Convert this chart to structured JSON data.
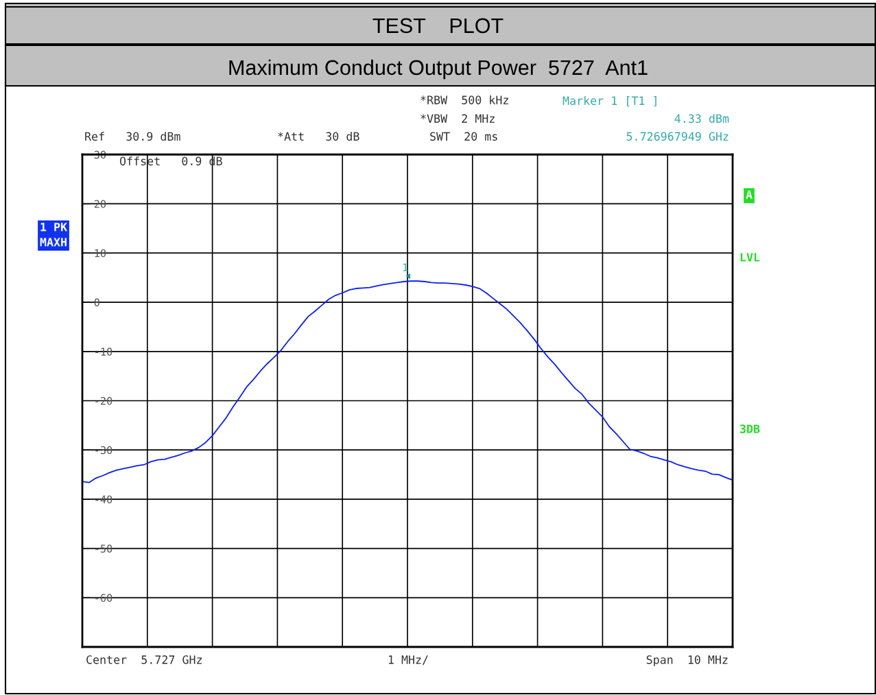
{
  "chart_data": {
    "type": "line",
    "title": "TEST    PLOT",
    "subtitle": "Maximum Conduct Output Power  5727  Ant1",
    "categories": [
      null,
      null,
      null,
      null,
      null,
      null,
      null,
      null,
      null,
      null,
      null,
      null,
      null,
      null,
      null,
      null,
      null,
      null,
      null,
      null,
      null,
      null,
      null,
      null,
      null,
      null,
      null,
      null,
      null,
      null,
      null,
      null,
      null,
      null,
      null,
      null,
      null,
      null,
      null,
      null,
      null,
      null,
      null,
      null,
      null,
      null,
      null,
      null,
      null,
      null,
      null,
      null,
      null,
      null,
      null,
      null,
      null,
      null,
      null,
      null,
      null,
      null,
      null,
      null,
      null,
      null,
      null,
      null,
      null,
      null,
      null,
      null,
      null,
      null,
      null,
      null,
      null,
      null,
      null,
      null,
      null,
      null,
      null,
      null,
      null,
      null,
      null,
      null,
      null,
      null,
      null,
      null,
      null,
      null,
      null,
      null
    ],
    "series": [
      {
        "color": "#0a1ff0",
        "values": [
          -36.4,
          -36.6,
          -35.7,
          -35.2,
          -34.6,
          -34.1,
          -33.8,
          -33.5,
          -33.2,
          -33.0,
          -32.4,
          -32.0,
          -31.9,
          -31.5,
          -31.1,
          -30.6,
          -30.2,
          -29.5,
          -28.5,
          -27.1,
          -25.3,
          -23.5,
          -21.3,
          -19.3,
          -17.2,
          -15.7,
          -14.0,
          -12.5,
          -11.2,
          -9.8,
          -8.0,
          -6.4,
          -4.6,
          -2.9,
          -1.8,
          -0.6,
          0.6,
          1.4,
          1.9,
          2.5,
          2.8,
          2.9,
          3.0,
          3.3,
          3.6,
          3.8,
          4.0,
          4.2,
          4.3,
          4.3,
          4.2,
          4.0,
          3.9,
          3.9,
          3.8,
          3.7,
          3.5,
          3.2,
          2.8,
          1.9,
          0.8,
          -0.3,
          -1.4,
          -2.8,
          -4.2,
          -5.8,
          -7.5,
          -9.4,
          -11.1,
          -12.6,
          -14.3,
          -15.9,
          -17.5,
          -18.7,
          -20.5,
          -21.9,
          -23.3,
          -25.3,
          -26.7,
          -28.3,
          -29.9,
          -30.2,
          -30.7,
          -31.3,
          -31.6,
          -32.0,
          -32.4,
          -33.0,
          -33.4,
          -33.8,
          -34.1,
          -34.3,
          -34.9,
          -35.0,
          -35.6,
          -36.1
        ]
      }
    ],
    "ylim": [
      -70,
      30
    ],
    "yticks": [
      {
        "value": -70,
        "label": null
      },
      -60,
      -50,
      -40,
      -30,
      -20,
      -10,
      0,
      10,
      20,
      30
    ],
    "grid": true,
    "annotations": [
      {
        "text": "1",
        "y": 4.33
      },
      "*RBW  500 kHz",
      "*VBW  2 MHz",
      "SWT  20 ms",
      "Ref   30.9 dBm",
      "*Att   30 dB",
      "Marker 1 [T1 ]",
      "4.33 dBm",
      "5.726967949 GHz",
      "Offset   0.9 dB",
      "1 PK",
      "MAXH",
      "A",
      "LVL",
      "3DB",
      "Center  5.727 GHz",
      "1 MHz/",
      "Span  10 MHz"
    ]
  }
}
